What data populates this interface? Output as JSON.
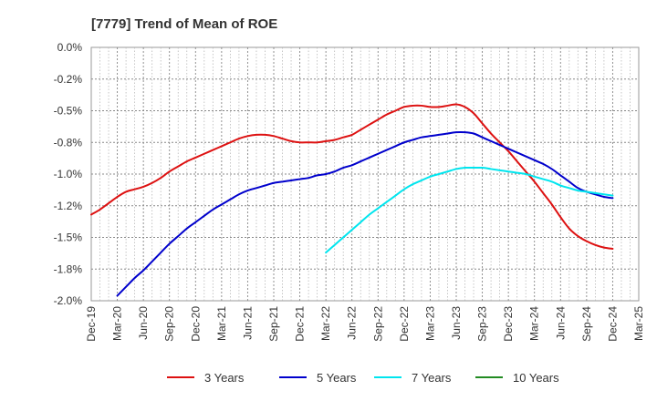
{
  "chart_data": {
    "type": "line",
    "title": "[7779]  Trend of Mean of ROE",
    "xlabel": "",
    "ylabel": "",
    "ylim": [
      -2.0,
      0.0
    ],
    "y_ticks": [
      "0.0%",
      "-0.2%",
      "-0.5%",
      "-0.8%",
      "-1.0%",
      "-1.2%",
      "-1.5%",
      "-1.8%",
      "-2.0%"
    ],
    "x_ticks": [
      "Dec-19",
      "Mar-20",
      "Jun-20",
      "Sep-20",
      "Dec-20",
      "Mar-21",
      "Jun-21",
      "Sep-21",
      "Dec-21",
      "Mar-22",
      "Jun-22",
      "Sep-22",
      "Dec-22",
      "Mar-23",
      "Jun-23",
      "Sep-23",
      "Dec-23",
      "Mar-24",
      "Jun-24",
      "Sep-24",
      "Dec-24",
      "Mar-25"
    ],
    "grid": true,
    "legend_position": "bottom",
    "series": [
      {
        "name": "3 Years",
        "color": "#dd1111",
        "points": [
          [
            "Dec-19",
            -1.32
          ],
          [
            "Jan-20",
            -1.28
          ],
          [
            "Feb-20",
            -1.23
          ],
          [
            "Mar-20",
            -1.18
          ],
          [
            "Apr-20",
            -1.14
          ],
          [
            "May-20",
            -1.12
          ],
          [
            "Jun-20",
            -1.1
          ],
          [
            "Jul-20",
            -1.07
          ],
          [
            "Aug-20",
            -1.03
          ],
          [
            "Sep-20",
            -0.98
          ],
          [
            "Oct-20",
            -0.94
          ],
          [
            "Nov-20",
            -0.9
          ],
          [
            "Dec-20",
            -0.87
          ],
          [
            "Jan-21",
            -0.84
          ],
          [
            "Feb-21",
            -0.81
          ],
          [
            "Mar-21",
            -0.78
          ],
          [
            "Apr-21",
            -0.75
          ],
          [
            "May-21",
            -0.72
          ],
          [
            "Jun-21",
            -0.7
          ],
          [
            "Jul-21",
            -0.69
          ],
          [
            "Aug-21",
            -0.69
          ],
          [
            "Sep-21",
            -0.7
          ],
          [
            "Oct-21",
            -0.72
          ],
          [
            "Nov-21",
            -0.74
          ],
          [
            "Dec-21",
            -0.75
          ],
          [
            "Jan-22",
            -0.75
          ],
          [
            "Feb-22",
            -0.75
          ],
          [
            "Mar-22",
            -0.74
          ],
          [
            "Apr-22",
            -0.73
          ],
          [
            "May-22",
            -0.71
          ],
          [
            "Jun-22",
            -0.69
          ],
          [
            "Jul-22",
            -0.65
          ],
          [
            "Aug-22",
            -0.61
          ],
          [
            "Sep-22",
            -0.57
          ],
          [
            "Oct-22",
            -0.53
          ],
          [
            "Nov-22",
            -0.5
          ],
          [
            "Dec-22",
            -0.47
          ],
          [
            "Jan-23",
            -0.46
          ],
          [
            "Feb-23",
            -0.46
          ],
          [
            "Mar-23",
            -0.47
          ],
          [
            "Apr-23",
            -0.47
          ],
          [
            "May-23",
            -0.46
          ],
          [
            "Jun-23",
            -0.45
          ],
          [
            "Jul-23",
            -0.47
          ],
          [
            "Aug-23",
            -0.52
          ],
          [
            "Sep-23",
            -0.6
          ],
          [
            "Oct-23",
            -0.68
          ],
          [
            "Nov-23",
            -0.75
          ],
          [
            "Dec-23",
            -0.82
          ],
          [
            "Jan-24",
            -0.9
          ],
          [
            "Feb-24",
            -0.98
          ],
          [
            "Mar-24",
            -1.06
          ],
          [
            "Apr-24",
            -1.15
          ],
          [
            "May-24",
            -1.24
          ],
          [
            "Jun-24",
            -1.34
          ],
          [
            "Jul-24",
            -1.43
          ],
          [
            "Aug-24",
            -1.49
          ],
          [
            "Sep-24",
            -1.53
          ],
          [
            "Oct-24",
            -1.56
          ],
          [
            "Nov-24",
            -1.58
          ],
          [
            "Dec-24",
            -1.59
          ]
        ]
      },
      {
        "name": "5 Years",
        "color": "#0000cc",
        "points": [
          [
            "Mar-20",
            -1.96
          ],
          [
            "Apr-20",
            -1.89
          ],
          [
            "May-20",
            -1.82
          ],
          [
            "Jun-20",
            -1.76
          ],
          [
            "Jul-20",
            -1.69
          ],
          [
            "Aug-20",
            -1.62
          ],
          [
            "Sep-20",
            -1.55
          ],
          [
            "Oct-20",
            -1.49
          ],
          [
            "Nov-20",
            -1.43
          ],
          [
            "Dec-20",
            -1.38
          ],
          [
            "Jan-21",
            -1.33
          ],
          [
            "Feb-21",
            -1.28
          ],
          [
            "Mar-21",
            -1.24
          ],
          [
            "Apr-21",
            -1.2
          ],
          [
            "May-21",
            -1.16
          ],
          [
            "Jun-21",
            -1.13
          ],
          [
            "Jul-21",
            -1.11
          ],
          [
            "Aug-21",
            -1.09
          ],
          [
            "Sep-21",
            -1.07
          ],
          [
            "Oct-21",
            -1.06
          ],
          [
            "Nov-21",
            -1.05
          ],
          [
            "Dec-21",
            -1.04
          ],
          [
            "Jan-22",
            -1.03
          ],
          [
            "Feb-22",
            -1.01
          ],
          [
            "Mar-22",
            -1.0
          ],
          [
            "Apr-22",
            -0.98
          ],
          [
            "May-22",
            -0.95
          ],
          [
            "Jun-22",
            -0.93
          ],
          [
            "Jul-22",
            -0.9
          ],
          [
            "Aug-22",
            -0.87
          ],
          [
            "Sep-22",
            -0.84
          ],
          [
            "Oct-22",
            -0.81
          ],
          [
            "Nov-22",
            -0.78
          ],
          [
            "Dec-22",
            -0.75
          ],
          [
            "Jan-23",
            -0.73
          ],
          [
            "Feb-23",
            -0.71
          ],
          [
            "Mar-23",
            -0.7
          ],
          [
            "Apr-23",
            -0.69
          ],
          [
            "May-23",
            -0.68
          ],
          [
            "Jun-23",
            -0.67
          ],
          [
            "Jul-23",
            -0.67
          ],
          [
            "Aug-23",
            -0.68
          ],
          [
            "Sep-23",
            -0.71
          ],
          [
            "Oct-23",
            -0.74
          ],
          [
            "Nov-23",
            -0.77
          ],
          [
            "Dec-23",
            -0.8
          ],
          [
            "Jan-24",
            -0.83
          ],
          [
            "Feb-24",
            -0.86
          ],
          [
            "Mar-24",
            -0.89
          ],
          [
            "Apr-24",
            -0.92
          ],
          [
            "May-24",
            -0.96
          ],
          [
            "Jun-24",
            -1.01
          ],
          [
            "Jul-24",
            -1.06
          ],
          [
            "Aug-24",
            -1.11
          ],
          [
            "Sep-24",
            -1.14
          ],
          [
            "Oct-24",
            -1.16
          ],
          [
            "Nov-24",
            -1.18
          ],
          [
            "Dec-24",
            -1.19
          ]
        ]
      },
      {
        "name": "7 Years",
        "color": "#00e5ee",
        "points": [
          [
            "Mar-22",
            -1.62
          ],
          [
            "Apr-22",
            -1.56
          ],
          [
            "May-22",
            -1.5
          ],
          [
            "Jun-22",
            -1.44
          ],
          [
            "Jul-22",
            -1.38
          ],
          [
            "Aug-22",
            -1.32
          ],
          [
            "Sep-22",
            -1.27
          ],
          [
            "Oct-22",
            -1.22
          ],
          [
            "Nov-22",
            -1.17
          ],
          [
            "Dec-22",
            -1.12
          ],
          [
            "Jan-23",
            -1.08
          ],
          [
            "Feb-23",
            -1.05
          ],
          [
            "Mar-23",
            -1.02
          ],
          [
            "Apr-23",
            -1.0
          ],
          [
            "May-23",
            -0.98
          ],
          [
            "Jun-23",
            -0.96
          ],
          [
            "Jul-23",
            -0.95
          ],
          [
            "Aug-23",
            -0.95
          ],
          [
            "Sep-23",
            -0.95
          ],
          [
            "Oct-23",
            -0.96
          ],
          [
            "Nov-23",
            -0.97
          ],
          [
            "Dec-23",
            -0.98
          ],
          [
            "Jan-24",
            -0.99
          ],
          [
            "Feb-24",
            -1.0
          ],
          [
            "Mar-24",
            -1.02
          ],
          [
            "Apr-24",
            -1.04
          ],
          [
            "May-24",
            -1.06
          ],
          [
            "Jun-24",
            -1.09
          ],
          [
            "Jul-24",
            -1.11
          ],
          [
            "Aug-24",
            -1.13
          ],
          [
            "Sep-24",
            -1.14
          ],
          [
            "Oct-24",
            -1.15
          ],
          [
            "Nov-24",
            -1.16
          ],
          [
            "Dec-24",
            -1.17
          ]
        ]
      },
      {
        "name": "10 Years",
        "color": "#228b22",
        "points": []
      }
    ]
  }
}
